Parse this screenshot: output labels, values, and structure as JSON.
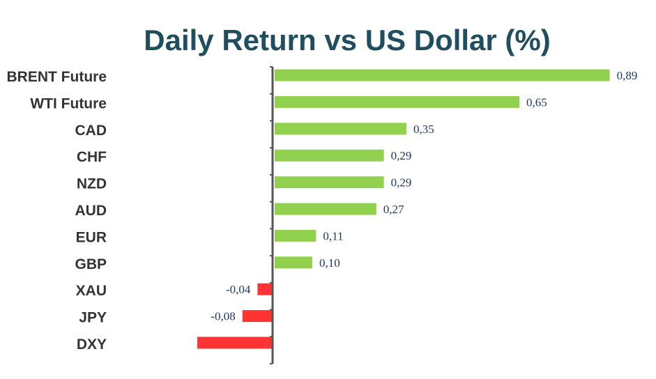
{
  "chart_data": {
    "type": "bar",
    "orientation": "horizontal",
    "title": "Daily Return vs US Dollar (%)",
    "xlabel": "",
    "ylabel": "",
    "categories": [
      "BRENT Future",
      "WTI Future",
      "CAD",
      "CHF",
      "NZD",
      "AUD",
      "EUR",
      "GBP",
      "XAU",
      "JPY",
      "DXY"
    ],
    "values": [
      0.89,
      0.65,
      0.35,
      0.29,
      0.29,
      0.27,
      0.11,
      0.1,
      -0.04,
      -0.08,
      -0.2
    ],
    "data_labels": [
      "0,89",
      "0,65",
      "0,35",
      "0,29",
      "0,29",
      "0,27",
      "0,11",
      "0,10",
      "-0,04",
      "-0,08",
      ""
    ],
    "xlim": [
      -0.2,
      0.9
    ],
    "grid": false,
    "legend": "none",
    "colors": {
      "positive": "#92D050",
      "negative": "#FF3333",
      "title": "#1F4E5F",
      "value_label": "#1F3864",
      "category_label": "#333333",
      "axis": "#555555"
    }
  }
}
